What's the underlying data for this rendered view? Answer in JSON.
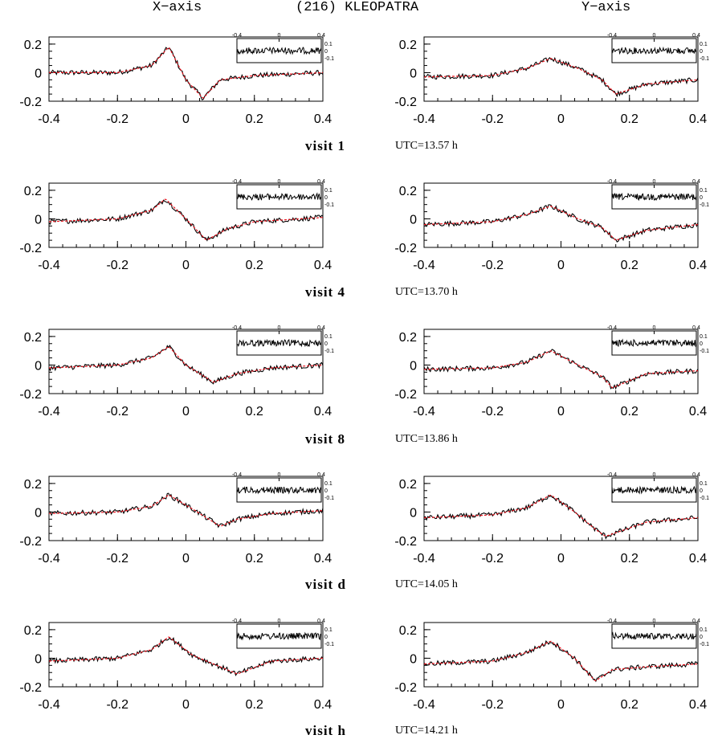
{
  "header": {
    "left": "X−axis",
    "center": "(216)  KLEOPATRA",
    "right": "Y−axis"
  },
  "visits": [
    {
      "label": "visit  1",
      "utc": "UTC=13.57 h"
    },
    {
      "label": "visit  4",
      "utc": "UTC=13.70 h"
    },
    {
      "label": "visit  8",
      "utc": "UTC=13.86 h"
    },
    {
      "label": "visit  d",
      "utc": "UTC=14.05 h"
    },
    {
      "label": "visit  h",
      "utc": "UTC=14.21 h"
    }
  ],
  "colors": {
    "observed": "#000000",
    "model": "#e8141e"
  },
  "chart_data": [
    {
      "type": "line",
      "title": "visit 1 X-axis",
      "xlim": [
        -0.4,
        0.4
      ],
      "ylim": [
        -0.2,
        0.25
      ],
      "x_ticks": [
        "-0.4",
        "-0.2",
        "0",
        "0.2",
        "0.4"
      ],
      "y_ticks": [
        "0.2",
        "0",
        "-0.2"
      ],
      "series": [
        {
          "x": [
            -0.4,
            -0.2,
            -0.1,
            -0.05,
            0.0,
            0.05,
            0.1,
            0.2,
            0.4
          ],
          "y": [
            0.0,
            0.0,
            0.05,
            0.18,
            -0.05,
            -0.18,
            -0.05,
            -0.02,
            0.0
          ]
        }
      ],
      "inset": {
        "x_ticks": [
          "-0.4",
          "0",
          "0.4"
        ],
        "y_ticks": [
          "0.1",
          "0",
          "-0.1"
        ]
      }
    },
    {
      "type": "line",
      "title": "visit 1 Y-axis",
      "xlim": [
        -0.4,
        0.4
      ],
      "ylim": [
        -0.2,
        0.25
      ],
      "x_ticks": [
        "-0.4",
        "-0.2",
        "0",
        "0.2",
        "0.4"
      ],
      "y_ticks": [
        "0.2",
        "0",
        "-0.2"
      ],
      "series": [
        {
          "x": [
            -0.4,
            -0.2,
            -0.1,
            -0.03,
            0.05,
            0.12,
            0.16,
            0.25,
            0.4
          ],
          "y": [
            -0.03,
            -0.02,
            0.03,
            0.1,
            0.03,
            -0.05,
            -0.15,
            -0.08,
            -0.05
          ]
        }
      ],
      "inset": {
        "x_ticks": [
          "-0.4",
          "0",
          "0.4"
        ],
        "y_ticks": [
          "0.1",
          "0",
          "-0.1"
        ]
      }
    },
    {
      "type": "line",
      "title": "visit 4 X-axis",
      "xlim": [
        -0.4,
        0.4
      ],
      "ylim": [
        -0.2,
        0.25
      ],
      "x_ticks": [
        "-0.4",
        "-0.2",
        "0",
        "0.2",
        "0.4"
      ],
      "y_ticks": [
        "0.2",
        "0",
        "-0.2"
      ],
      "series": [
        {
          "x": [
            -0.4,
            -0.2,
            -0.1,
            -0.06,
            0.0,
            0.06,
            0.12,
            0.2,
            0.4
          ],
          "y": [
            -0.02,
            0.0,
            0.06,
            0.14,
            0.0,
            -0.15,
            -0.07,
            -0.02,
            0.01
          ]
        }
      ],
      "inset": {
        "x_ticks": [
          "-0.4",
          "0",
          "0.4"
        ],
        "y_ticks": [
          "0.1",
          "0",
          "-0.1"
        ]
      }
    },
    {
      "type": "line",
      "title": "visit 4 Y-axis",
      "xlim": [
        -0.4,
        0.4
      ],
      "ylim": [
        -0.2,
        0.25
      ],
      "x_ticks": [
        "-0.4",
        "-0.2",
        "0",
        "0.2",
        "0.4"
      ],
      "y_ticks": [
        "0.2",
        "0",
        "-0.2"
      ],
      "series": [
        {
          "x": [
            -0.4,
            -0.2,
            -0.1,
            -0.03,
            0.05,
            0.12,
            0.16,
            0.25,
            0.4
          ],
          "y": [
            -0.04,
            -0.02,
            0.03,
            0.09,
            0.0,
            -0.06,
            -0.15,
            -0.08,
            -0.04
          ]
        }
      ],
      "inset": {
        "x_ticks": [
          "-0.4",
          "0",
          "0.4"
        ],
        "y_ticks": [
          "0.1",
          "0",
          "-0.1"
        ]
      }
    },
    {
      "type": "line",
      "title": "visit 8 X-axis",
      "xlim": [
        -0.4,
        0.4
      ],
      "ylim": [
        -0.2,
        0.25
      ],
      "x_ticks": [
        "-0.4",
        "-0.2",
        "0",
        "0.2",
        "0.4"
      ],
      "y_ticks": [
        "0.2",
        "0",
        "-0.2"
      ],
      "series": [
        {
          "x": [
            -0.4,
            -0.2,
            -0.1,
            -0.05,
            0.0,
            0.08,
            0.15,
            0.25,
            0.4
          ],
          "y": [
            -0.02,
            0.0,
            0.05,
            0.13,
            0.0,
            -0.12,
            -0.06,
            -0.02,
            0.0
          ]
        }
      ],
      "inset": {
        "x_ticks": [
          "-0.4",
          "0",
          "0.4"
        ],
        "y_ticks": [
          "0.1",
          "0",
          "-0.1"
        ]
      }
    },
    {
      "type": "line",
      "title": "visit 8 Y-axis",
      "xlim": [
        -0.4,
        0.4
      ],
      "ylim": [
        -0.2,
        0.25
      ],
      "x_ticks": [
        "-0.4",
        "-0.2",
        "0",
        "0.2",
        "0.4"
      ],
      "y_ticks": [
        "0.2",
        "0",
        "-0.2"
      ],
      "series": [
        {
          "x": [
            -0.4,
            -0.2,
            -0.1,
            -0.03,
            0.05,
            0.12,
            0.15,
            0.25,
            0.4
          ],
          "y": [
            -0.03,
            -0.02,
            0.02,
            0.1,
            0.0,
            -0.08,
            -0.16,
            -0.06,
            -0.04
          ]
        }
      ],
      "inset": {
        "x_ticks": [
          "-0.4",
          "0",
          "0.4"
        ],
        "y_ticks": [
          "0.1",
          "0",
          "-0.1"
        ]
      }
    },
    {
      "type": "line",
      "title": "visit d X-axis",
      "xlim": [
        -0.4,
        0.4
      ],
      "ylim": [
        -0.2,
        0.25
      ],
      "x_ticks": [
        "-0.4",
        "-0.2",
        "0",
        "0.2",
        "0.4"
      ],
      "y_ticks": [
        "0.2",
        "0",
        "-0.2"
      ],
      "series": [
        {
          "x": [
            -0.4,
            -0.2,
            -0.1,
            -0.05,
            0.02,
            0.1,
            0.15,
            0.25,
            0.4
          ],
          "y": [
            -0.01,
            0.0,
            0.04,
            0.12,
            0.02,
            -0.1,
            -0.05,
            -0.01,
            0.01
          ]
        }
      ],
      "inset": {
        "x_ticks": [
          "-0.4",
          "0",
          "0.4"
        ],
        "y_ticks": [
          "0.1",
          "0",
          "-0.1"
        ]
      }
    },
    {
      "type": "line",
      "title": "visit d Y-axis",
      "xlim": [
        -0.4,
        0.4
      ],
      "ylim": [
        -0.2,
        0.25
      ],
      "x_ticks": [
        "-0.4",
        "-0.2",
        "0",
        "0.2",
        "0.4"
      ],
      "y_ticks": [
        "0.2",
        "0",
        "-0.2"
      ],
      "series": [
        {
          "x": [
            -0.4,
            -0.2,
            -0.1,
            -0.03,
            0.04,
            0.1,
            0.13,
            0.25,
            0.4
          ],
          "y": [
            -0.04,
            -0.02,
            0.03,
            0.12,
            0.0,
            -0.12,
            -0.17,
            -0.07,
            -0.04
          ]
        }
      ],
      "inset": {
        "x_ticks": [
          "-0.4",
          "0",
          "0.4"
        ],
        "y_ticks": [
          "0.1",
          "0",
          "-0.1"
        ]
      }
    },
    {
      "type": "line",
      "title": "visit h X-axis",
      "xlim": [
        -0.4,
        0.4
      ],
      "ylim": [
        -0.2,
        0.25
      ],
      "x_ticks": [
        "-0.4",
        "-0.2",
        "0",
        "0.2",
        "0.4"
      ],
      "y_ticks": [
        "0.2",
        "0",
        "-0.2"
      ],
      "series": [
        {
          "x": [
            -0.4,
            -0.2,
            -0.1,
            -0.05,
            0.02,
            0.1,
            0.15,
            0.25,
            0.4
          ],
          "y": [
            -0.02,
            0.0,
            0.06,
            0.15,
            0.02,
            -0.06,
            -0.11,
            -0.02,
            0.0
          ]
        }
      ],
      "inset": {
        "x_ticks": [
          "-0.4",
          "0",
          "0.4"
        ],
        "y_ticks": [
          "0.1",
          "0",
          "-0.1"
        ]
      }
    },
    {
      "type": "line",
      "title": "visit h Y-axis",
      "xlim": [
        -0.4,
        0.4
      ],
      "ylim": [
        -0.2,
        0.25
      ],
      "x_ticks": [
        "-0.4",
        "-0.2",
        "0",
        "0.2",
        "0.4"
      ],
      "y_ticks": [
        "0.2",
        "0",
        "-0.2"
      ],
      "series": [
        {
          "x": [
            -0.4,
            -0.2,
            -0.1,
            -0.03,
            0.04,
            0.1,
            0.15,
            0.25,
            0.4
          ],
          "y": [
            -0.04,
            -0.02,
            0.04,
            0.12,
            0.0,
            -0.16,
            -0.08,
            -0.06,
            -0.04
          ]
        }
      ],
      "inset": {
        "x_ticks": [
          "-0.4",
          "0",
          "0.4"
        ],
        "y_ticks": [
          "0.1",
          "0",
          "-0.1"
        ]
      }
    }
  ]
}
